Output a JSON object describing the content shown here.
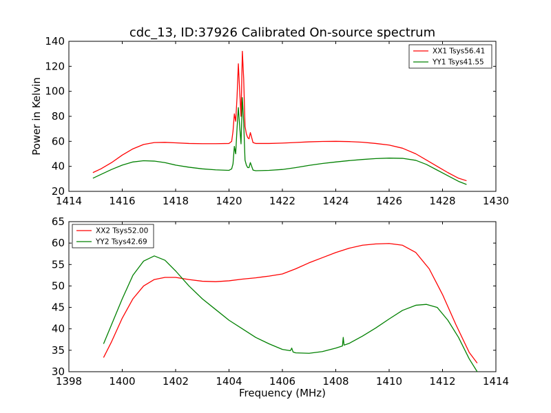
{
  "chart_data": [
    {
      "type": "line",
      "title": "cdc_13, ID:37926 Calibrated On-source spectrum",
      "xlabel": "",
      "ylabel": "Power in Kelvin",
      "xlim": [
        1414,
        1430
      ],
      "ylim": [
        20,
        140
      ],
      "xticks": [
        1414,
        1416,
        1418,
        1420,
        1422,
        1424,
        1426,
        1428,
        1430
      ],
      "yticks": [
        20,
        40,
        60,
        80,
        100,
        120,
        140
      ],
      "grid": false,
      "legend": "top-right",
      "series": [
        {
          "name": "XX1 Tsys56.41",
          "color": "#ff0000",
          "x": [
            1414.9,
            1415.2,
            1415.6,
            1416.0,
            1416.4,
            1416.8,
            1417.2,
            1417.6,
            1418.0,
            1418.5,
            1419.0,
            1419.5,
            1420.0,
            1420.1,
            1420.15,
            1420.2,
            1420.25,
            1420.3,
            1420.35,
            1420.4,
            1420.45,
            1420.5,
            1420.55,
            1420.6,
            1420.65,
            1420.7,
            1420.75,
            1420.8,
            1420.85,
            1420.9,
            1421.0,
            1421.5,
            1422.0,
            1422.5,
            1423.0,
            1423.5,
            1424.0,
            1424.5,
            1425.0,
            1425.5,
            1426.0,
            1426.5,
            1427.0,
            1427.4,
            1427.8,
            1428.2,
            1428.6,
            1428.9
          ],
          "values": [
            35,
            38,
            43,
            49,
            54,
            57.5,
            59,
            59.2,
            58.8,
            58.3,
            58.1,
            58.1,
            58.3,
            60,
            68,
            82,
            76,
            95,
            122,
            100,
            80,
            132,
            110,
            72,
            66,
            63,
            62,
            67,
            63,
            59,
            58.3,
            58.3,
            58.6,
            59.1,
            59.6,
            59.9,
            60,
            59.8,
            59.3,
            58.3,
            57,
            54.5,
            50,
            45,
            40,
            35,
            30.5,
            28.5
          ]
        },
        {
          "name": "YY1 Tsys41.55",
          "color": "#008000",
          "x": [
            1414.9,
            1415.2,
            1415.6,
            1416.0,
            1416.4,
            1416.8,
            1417.2,
            1417.6,
            1418.0,
            1418.5,
            1419.0,
            1419.5,
            1420.0,
            1420.1,
            1420.15,
            1420.2,
            1420.25,
            1420.3,
            1420.35,
            1420.4,
            1420.45,
            1420.5,
            1420.55,
            1420.6,
            1420.65,
            1420.7,
            1420.75,
            1420.8,
            1420.85,
            1420.9,
            1421.0,
            1421.5,
            1422.0,
            1422.5,
            1423.0,
            1423.5,
            1424.0,
            1424.5,
            1425.0,
            1425.5,
            1426.0,
            1426.5,
            1427.0,
            1427.4,
            1427.8,
            1428.2,
            1428.6,
            1428.9
          ],
          "values": [
            30.5,
            33.5,
            37.5,
            41,
            43.5,
            44.5,
            44.2,
            43,
            41,
            39.3,
            38,
            37.2,
            36.8,
            38,
            42,
            56,
            50,
            70,
            87,
            72,
            58,
            95,
            75,
            45,
            41,
            39,
            39,
            43,
            40,
            37,
            36.5,
            36.8,
            37.5,
            39,
            40.8,
            42.3,
            43.5,
            44.6,
            45.5,
            46.2,
            46.6,
            46.4,
            44.8,
            41.5,
            37,
            32.5,
            28,
            25.5
          ]
        }
      ]
    },
    {
      "type": "line",
      "title": "",
      "xlabel": "Frequency (MHz)",
      "ylabel": "",
      "xlim": [
        1398,
        1414
      ],
      "ylim": [
        30,
        65
      ],
      "xticks": [
        1398,
        1400,
        1402,
        1404,
        1406,
        1408,
        1410,
        1412,
        1414
      ],
      "yticks": [
        30,
        35,
        40,
        45,
        50,
        55,
        60,
        65
      ],
      "grid": false,
      "legend": "top-left",
      "series": [
        {
          "name": "XX2 Tsys52.00",
          "color": "#ff0000",
          "x": [
            1399.3,
            1399.6,
            1400.0,
            1400.4,
            1400.8,
            1401.2,
            1401.6,
            1402.0,
            1402.5,
            1403.0,
            1403.5,
            1404.0,
            1404.5,
            1405.0,
            1405.5,
            1406.0,
            1406.5,
            1407.0,
            1407.5,
            1408.0,
            1408.5,
            1409.0,
            1409.5,
            1410.0,
            1410.5,
            1411.0,
            1411.5,
            1412.0,
            1412.5,
            1413.0,
            1413.3
          ],
          "values": [
            33.3,
            37,
            42.5,
            47,
            50,
            51.5,
            52,
            52,
            51.5,
            51.1,
            51,
            51.2,
            51.6,
            51.9,
            52.3,
            52.8,
            54,
            55.4,
            56.6,
            57.8,
            58.8,
            59.5,
            59.8,
            59.9,
            59.5,
            57.8,
            54,
            48,
            41,
            34.5,
            32
          ]
        },
        {
          "name": "YY2 Tsys42.69",
          "color": "#008000",
          "x": [
            1399.3,
            1399.6,
            1400.0,
            1400.4,
            1400.8,
            1401.2,
            1401.6,
            1402.0,
            1402.5,
            1403.0,
            1403.5,
            1404.0,
            1404.5,
            1405.0,
            1405.5,
            1406.0,
            1406.3,
            1406.35,
            1406.4,
            1406.5,
            1407.0,
            1407.5,
            1408.0,
            1408.25,
            1408.28,
            1408.31,
            1408.5,
            1409.0,
            1409.5,
            1410.0,
            1410.5,
            1411.0,
            1411.4,
            1411.8,
            1412.2,
            1412.6,
            1413.0,
            1413.3
          ],
          "values": [
            36.5,
            41,
            47,
            52.5,
            55.8,
            57,
            56,
            53.5,
            50,
            47,
            44.5,
            42,
            40,
            38,
            36.5,
            35.2,
            34.9,
            35.5,
            34.6,
            34.4,
            34.3,
            34.7,
            35.5,
            36,
            38,
            36.2,
            36.6,
            38.3,
            40.2,
            42.3,
            44.3,
            45.5,
            45.7,
            45,
            42,
            38,
            33,
            30
          ]
        }
      ]
    }
  ]
}
